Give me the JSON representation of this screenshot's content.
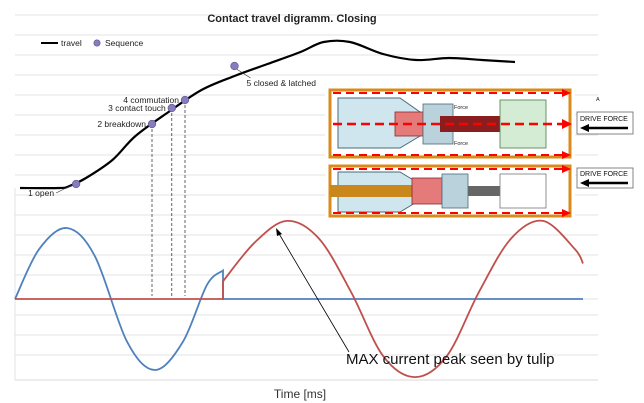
{
  "chart_data": [
    {
      "type": "line",
      "title": "Contact travel digramm. Closing",
      "legend": {
        "position": "top-left",
        "entries": [
          "travel",
          "Sequence"
        ]
      },
      "series": [
        {
          "name": "travel",
          "color": "#000000",
          "points": [
            [
              0,
              0
            ],
            [
              12,
              0
            ],
            [
              15,
              1
            ],
            [
              20,
              5
            ],
            [
              28,
              14
            ],
            [
              35,
              26
            ],
            [
              45,
              38
            ],
            [
              55,
              49
            ],
            [
              65,
              56
            ],
            [
              75,
              62
            ],
            [
              85,
              68
            ],
            [
              92,
              73
            ],
            [
              100,
              73
            ],
            [
              110,
              67
            ],
            [
              120,
              64
            ],
            [
              130,
              65
            ],
            [
              140,
              64
            ],
            [
              150,
              63
            ]
          ]
        }
      ],
      "sequence": [
        {
          "x": 17,
          "y": 2,
          "label": "1 open"
        },
        {
          "x": 40,
          "y": 32,
          "label": "2 breakdown"
        },
        {
          "x": 46,
          "y": 40,
          "label": "3 contact touch"
        },
        {
          "x": 50,
          "y": 44,
          "label": "4 commutation"
        },
        {
          "x": 65,
          "y": 61,
          "label": "5 closed & latched"
        }
      ],
      "sequence_color": "#8b79c2",
      "grid": true
    },
    {
      "type": "line",
      "xlabel": "Time [ms]",
      "series": [
        {
          "color": "#4f81bd",
          "points": [
            [
              0,
              0
            ],
            [
              3,
              0.7
            ],
            [
              6.5,
              1
            ],
            [
              10,
              0.6
            ],
            [
              14,
              -0.6
            ],
            [
              17.5,
              -1
            ],
            [
              21,
              -0.6
            ],
            [
              24,
              0.2
            ],
            [
              26,
              0.4
            ],
            [
              26,
              0
            ],
            [
              71,
              0
            ]
          ]
        },
        {
          "color": "#c0504d",
          "points": [
            [
              0,
              0
            ],
            [
              26,
              0
            ],
            [
              26,
              0.25
            ],
            [
              30,
              0.8
            ],
            [
              34,
              1.1
            ],
            [
              38,
              0.85
            ],
            [
              42,
              0.1
            ],
            [
              46,
              -0.8
            ],
            [
              50,
              -1.1
            ],
            [
              54,
              -0.8
            ],
            [
              58,
              0.1
            ],
            [
              62,
              0.85
            ],
            [
              66,
              1.1
            ],
            [
              70,
              0.7
            ],
            [
              71,
              0.5
            ]
          ]
        }
      ],
      "annotation": "MAX current peak seen by tulip",
      "grid": true
    }
  ],
  "inset": {
    "label_top": "DRIVE FORCE",
    "label_bottom": "DRIVE FORCE",
    "force_label": "Force",
    "corner_label": "A"
  }
}
